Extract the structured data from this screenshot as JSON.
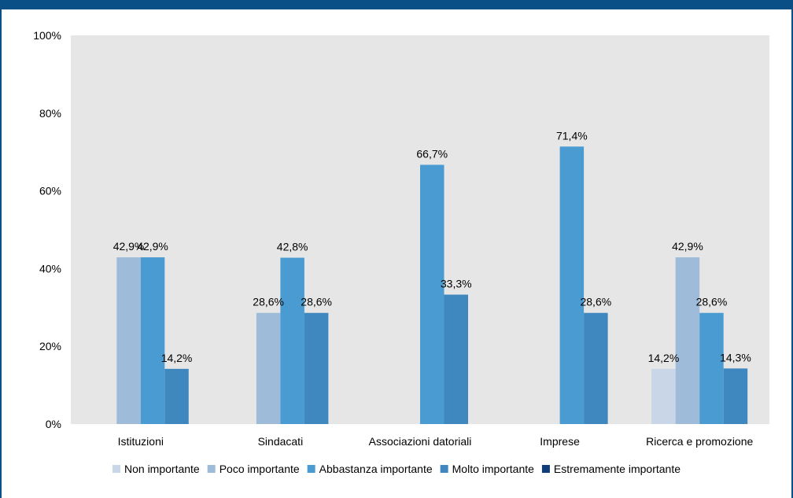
{
  "chart_data": {
    "type": "bar",
    "title": "",
    "xlabel": "",
    "ylabel": "",
    "ylim": [
      0,
      100
    ],
    "yticks": [
      "0%",
      "20%",
      "40%",
      "60%",
      "80%",
      "100%"
    ],
    "grid": false,
    "legend_position": "bottom",
    "plot_background": "#e6e6e6",
    "categories": [
      "Istituzioni",
      "Sindacati",
      "Associazioni datoriali",
      "Imprese",
      "Ricerca e promozione"
    ],
    "series": [
      {
        "name": "Non importante",
        "color": "#c9d6e8",
        "values": [
          null,
          null,
          null,
          null,
          14.2
        ],
        "labels": [
          "",
          "",
          "",
          "",
          "14,2%"
        ]
      },
      {
        "name": "Poco importante",
        "color": "#9fbbda",
        "values": [
          42.9,
          28.6,
          null,
          null,
          42.9
        ],
        "labels": [
          "42,9%",
          "28,6%",
          "",
          "",
          "42,9%"
        ]
      },
      {
        "name": "Abbastanza importante",
        "color": "#4a9bd1",
        "values": [
          42.9,
          42.8,
          66.7,
          71.4,
          28.6
        ],
        "labels": [
          "42,9%",
          "42,8%",
          "66,7%",
          "71,4%",
          "28,6%"
        ]
      },
      {
        "name": "Molto importante",
        "color": "#3f88bf",
        "values": [
          14.2,
          28.6,
          33.3,
          28.6,
          14.3
        ],
        "labels": [
          "14,2%",
          "28,6%",
          "33,3%",
          "28,6%",
          "14,3%"
        ]
      },
      {
        "name": "Estremamente importante",
        "color": "#0f3d78",
        "values": [
          null,
          null,
          null,
          null,
          null
        ],
        "labels": [
          "",
          "",
          "",
          "",
          ""
        ]
      }
    ]
  }
}
